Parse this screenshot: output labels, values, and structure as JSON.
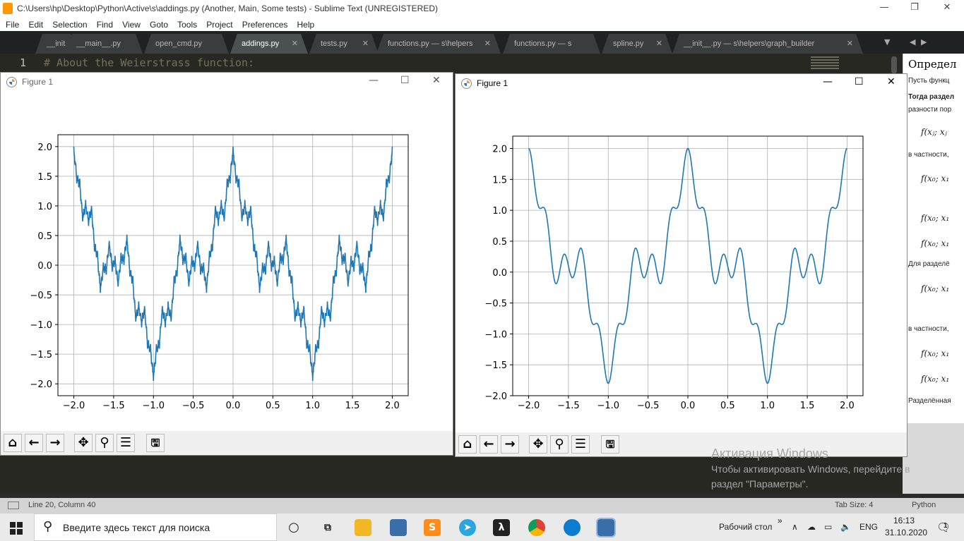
{
  "window": {
    "title": "C:\\Users\\hp\\Desktop\\Python\\Active\\s\\addings.py (Another, Main, Some tests) - Sublime Text (UNREGISTERED)",
    "controls": {
      "minimize": "—",
      "restore": "❐",
      "close": "✕"
    }
  },
  "menu": [
    "File",
    "Edit",
    "Selection",
    "Find",
    "View",
    "Goto",
    "Tools",
    "Project",
    "Preferences",
    "Help"
  ],
  "tabs": [
    {
      "label": "__init",
      "active": false
    },
    {
      "label": "__main__.py",
      "active": false
    },
    {
      "label": "open_cmd.py",
      "active": false
    },
    {
      "label": "addings.py",
      "active": true
    },
    {
      "label": "tests.py",
      "active": false
    },
    {
      "label": "functions.py — s\\helpers",
      "active": false
    },
    {
      "label": "functions.py — s",
      "active": false
    },
    {
      "label": "spline.py",
      "active": false
    },
    {
      "label": "__init__.py — s\\helpers\\graph_builder",
      "active": false
    }
  ],
  "editor": {
    "line_number": "1",
    "code": "# About the Weierstrass function:"
  },
  "reference_panel": {
    "heading": "Определ",
    "lines": [
      "Пусть функц",
      "Тогда раздел",
      "разности пор",
      "в частности,",
      "Для разделё",
      "в частности,",
      "Разделённая"
    ],
    "formulas": [
      "f(xⱼ; xⱼ",
      "f(x₀; x₁",
      "f(x₀; x₁",
      "f(x₀; x₁",
      "f(x₀; x₁",
      "f(x₀; x₁",
      "f(x₀; x₁"
    ]
  },
  "figure_left": {
    "title": "Figure 1",
    "controls": {
      "minimize": "—",
      "maximize": "☐",
      "close": "✕"
    }
  },
  "figure_right": {
    "title": "Figure 1",
    "controls": {
      "minimize": "—",
      "maximize": "☐",
      "close": "✕"
    }
  },
  "toolbar_icons": [
    "home-icon",
    "back-icon",
    "forward-icon",
    "pan-icon",
    "zoom-icon",
    "configure-subplots-icon",
    "save-icon"
  ],
  "toolbar_glyphs": [
    "⌂",
    "←",
    "→",
    "✥",
    "⚲",
    "☰",
    "🖫"
  ],
  "chart_data": [
    {
      "type": "line",
      "title": "",
      "xlabel": "",
      "ylabel": "",
      "xlim": [
        -2.2,
        2.2
      ],
      "ylim": [
        -2.2,
        2.2
      ],
      "xticks": [
        -2.0,
        -1.5,
        -1.0,
        -0.5,
        0.0,
        0.5,
        1.0,
        1.5,
        2.0
      ],
      "yticks": [
        -2.0,
        -1.5,
        -1.0,
        -0.5,
        0.0,
        0.5,
        1.0,
        1.5,
        2.0
      ],
      "xtick_labels": [
        "−2.0",
        "−1.5",
        "−1.0",
        "−0.5",
        "0.0",
        "0.5",
        "1.0",
        "1.5",
        "2.0"
      ],
      "ytick_labels": [
        "−2.0",
        "−1.5",
        "−1.0",
        "−0.5",
        "0.0",
        "0.5",
        "1.0",
        "1.5",
        "2.0"
      ],
      "grid": true,
      "series_color": "#1f77b4",
      "function": "Weierstrass partial sum (many terms), x in [-2, 2]",
      "x": [
        -2.0,
        -1.75,
        -1.5,
        -1.25,
        -1.0,
        -0.75,
        -0.5,
        -0.25,
        0.0,
        0.25,
        0.5,
        0.75,
        1.0,
        1.25,
        1.5,
        1.75,
        2.0
      ],
      "y": [
        2.0,
        0.9,
        -0.2,
        0.3,
        -1.95,
        -0.5,
        0.5,
        -0.05,
        1.95,
        -0.05,
        0.5,
        -0.5,
        -1.95,
        0.3,
        -0.2,
        0.9,
        2.0
      ]
    },
    {
      "type": "line",
      "title": "",
      "xlabel": "",
      "ylabel": "",
      "xlim": [
        -2.2,
        2.2
      ],
      "ylim": [
        -2.0,
        2.2
      ],
      "xticks": [
        -2.0,
        -1.5,
        -1.0,
        -0.5,
        0.0,
        0.5,
        1.0,
        1.5,
        2.0
      ],
      "yticks": [
        -2.0,
        -1.5,
        -1.0,
        -0.5,
        0.0,
        0.5,
        1.0,
        1.5,
        2.0
      ],
      "xtick_labels": [
        "−2.0",
        "−1.5",
        "−1.0",
        "−0.5",
        "0.0",
        "0.5",
        "1.0",
        "1.5",
        "2.0"
      ],
      "ytick_labels": [
        "−2.0",
        "−1.5",
        "−1.0",
        "−0.5",
        "0.0",
        "0.5",
        "1.0",
        "1.5",
        "2.0"
      ],
      "grid": true,
      "series_color": "#1f77b4",
      "function": "Weierstrass partial sum (few terms), x in [-2, 2]",
      "x": [
        -2.0,
        -1.75,
        -1.5,
        -1.25,
        -1.0,
        -0.75,
        -0.5,
        -0.25,
        0.0,
        0.25,
        0.5,
        0.75,
        1.0,
        1.25,
        1.5,
        1.75,
        2.0
      ],
      "y": [
        2.0,
        0.85,
        -0.1,
        -0.3,
        -1.8,
        -0.8,
        0.25,
        0.85,
        1.6,
        0.85,
        0.25,
        -0.8,
        -1.8,
        -0.3,
        -0.1,
        0.85,
        2.0
      ]
    }
  ],
  "status": {
    "position": "Line 20, Column 40",
    "tab_size": "Tab Size: 4",
    "syntax": "Python"
  },
  "activation": {
    "title": "Активация Windows",
    "line1": "Чтобы активировать Windows, перейдите в",
    "line2": "раздел \"Параметры\"."
  },
  "taskbar": {
    "search_placeholder": "Введите здесь текст для поиска",
    "desktop_label": "Рабочий стол",
    "chevron": "»",
    "language": "ENG",
    "time": "16:13",
    "date": "31.10.2020",
    "notification_count": "1"
  }
}
